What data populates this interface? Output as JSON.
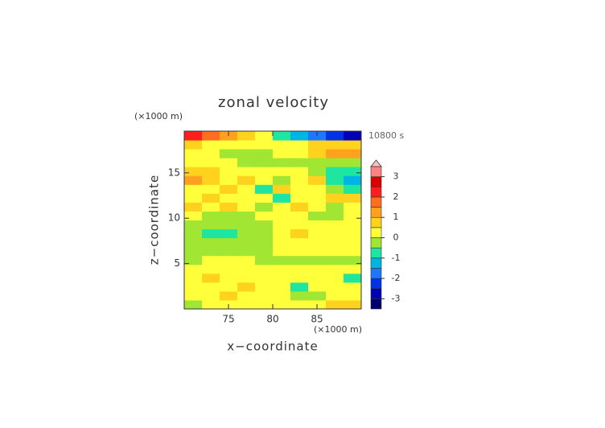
{
  "chart_data": {
    "type": "contour",
    "title": "zonal velocity",
    "x_label": "x−coordinate",
    "y_label": "z−coordinate",
    "x_unit": "(×1000 m)",
    "y_unit": "(×1000 m)",
    "time_label": "10800 s",
    "xlim": [
      70,
      90
    ],
    "xticks": [
      75,
      80,
      85
    ],
    "ylim": [
      0,
      19.6
    ],
    "yticks": [
      5,
      10,
      15
    ],
    "levels": [
      -3.5,
      -3,
      -2.5,
      -2,
      -1.5,
      -1,
      -0.5,
      0,
      0.5,
      1,
      1.5,
      2,
      2.5,
      3,
      3.5
    ],
    "colors": [
      "#00006e",
      "#0000b4",
      "#0032e6",
      "#1e78ff",
      "#00b4e6",
      "#1ee6a0",
      "#a0e632",
      "#ffff3c",
      "#ffd21e",
      "#ffa01e",
      "#ff6e1e",
      "#ff1e1e",
      "#dc0000",
      "#ff8282",
      "#ffc0c0"
    ],
    "colorbar_ticks": [
      -3,
      -2,
      -1,
      0,
      1,
      2,
      3
    ],
    "z": [
      [
        -0.3,
        0.2,
        0.3,
        0.2,
        0.2,
        0.3,
        0.2,
        0.3,
        0.6,
        0.8
      ],
      [
        0.3,
        0.3,
        0.6,
        0.3,
        0.2,
        0.3,
        -0.3,
        -0.4,
        0.3,
        0.3
      ],
      [
        0.2,
        0.3,
        0.3,
        0.7,
        0.3,
        0.3,
        -0.6,
        0.3,
        0.3,
        0.3
      ],
      [
        0.2,
        0.6,
        0.3,
        0.3,
        0.2,
        0.3,
        0.3,
        0.3,
        0.3,
        -0.6
      ],
      [
        0.3,
        0.3,
        0.3,
        0.3,
        0.3,
        0.2,
        0.3,
        0.3,
        0.3,
        0.3
      ],
      [
        -0.3,
        0.2,
        0.3,
        0.2,
        -0.3,
        -0.3,
        -0.3,
        -0.3,
        -0.3,
        -0.3
      ],
      [
        -0.3,
        -0.3,
        -0.3,
        -0.3,
        -0.3,
        0.2,
        0.2,
        0.2,
        0.3,
        0.3
      ],
      [
        -0.3,
        -0.3,
        -0.3,
        -0.3,
        -0.3,
        0.2,
        0.3,
        0.3,
        0.3,
        0.3
      ],
      [
        -0.3,
        -0.6,
        -0.6,
        -0.3,
        -0.3,
        0.2,
        0.6,
        0.3,
        0.3,
        0.3
      ],
      [
        -0.3,
        -0.3,
        -0.3,
        -0.3,
        -0.3,
        0.2,
        0.3,
        0.3,
        0.3,
        0.3
      ],
      [
        0.3,
        -0.3,
        -0.3,
        -0.3,
        0.2,
        0.3,
        0.3,
        -0.3,
        -0.3,
        0.3
      ],
      [
        0.6,
        0.3,
        0.7,
        0.3,
        -0.3,
        0.3,
        0.6,
        0.3,
        -0.3,
        0.3
      ],
      [
        0.3,
        0.6,
        0.3,
        0.3,
        0.3,
        -0.6,
        0.3,
        0.3,
        0.7,
        0.6
      ],
      [
        0.3,
        0.3,
        0.6,
        0.3,
        -0.6,
        0.6,
        0.3,
        0.3,
        -0.3,
        -0.6
      ],
      [
        1.1,
        0.7,
        0.3,
        0.6,
        0.3,
        -0.3,
        0.3,
        0.7,
        -0.6,
        -1.2
      ],
      [
        0.7,
        0.6,
        0.3,
        0.3,
        0.3,
        0.3,
        0.3,
        -0.3,
        -0.6,
        -0.6
      ],
      [
        0.3,
        0.2,
        0.3,
        -0.3,
        -0.3,
        -0.3,
        -0.3,
        -0.3,
        -0.3,
        -0.3
      ],
      [
        0.2,
        0.2,
        -0.3,
        -0.3,
        -0.3,
        0.2,
        0.3,
        0.7,
        1.1,
        1.2
      ],
      [
        0.7,
        0.3,
        0.3,
        0.3,
        0.3,
        0.2,
        0.3,
        0.7,
        0.7,
        0.6
      ],
      [
        2.2,
        1.7,
        1.2,
        0.7,
        0.3,
        -0.6,
        -1.2,
        -1.8,
        -2.3,
        -2.6
      ]
    ]
  }
}
